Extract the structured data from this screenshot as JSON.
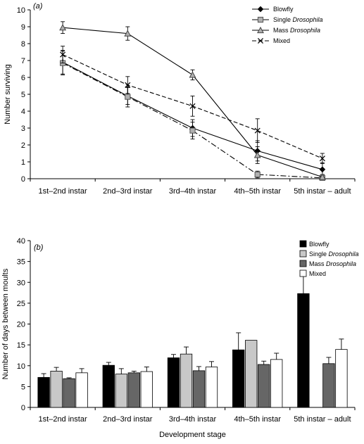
{
  "chart_data": [
    {
      "type": "line",
      "panel_label": "(a)",
      "ylabel": "Number surviving",
      "xlabel": "",
      "categories": [
        "1st–2nd instar",
        "2nd–3rd instar",
        "3rd–4th instar",
        "4th–5th instar",
        "5th instar – adult"
      ],
      "ylim": [
        0,
        10
      ],
      "yticks": [
        0,
        1,
        2,
        3,
        4,
        5,
        6,
        7,
        8,
        9,
        10
      ],
      "grid": false,
      "legend_position": "top-right",
      "series": [
        {
          "name": "Blowfly",
          "name_parts": [
            "Blowfly",
            ""
          ],
          "marker": "diamond",
          "dash": "solid",
          "values": [
            6.9,
            4.9,
            3.0,
            1.65,
            0.55
          ],
          "errors": [
            0.7,
            0.5,
            0.5,
            0.6,
            0.4
          ]
        },
        {
          "name": "Single Drosophila",
          "name_parts": [
            "Single ",
            "Drosophila"
          ],
          "marker": "square",
          "dash": "dashdot",
          "values": [
            6.85,
            4.85,
            2.85,
            0.25,
            0.05
          ],
          "errors": [
            0.7,
            0.6,
            0.5,
            0.2,
            0.05
          ]
        },
        {
          "name": "Mass Drosophila",
          "name_parts": [
            "Mass ",
            "Drosophila"
          ],
          "marker": "triangle",
          "dash": "solid",
          "values": [
            8.95,
            8.6,
            6.15,
            1.4,
            0.1
          ],
          "errors": [
            0.35,
            0.4,
            0.3,
            0.5,
            0.15
          ]
        },
        {
          "name": "Mixed",
          "name_parts": [
            "Mixed",
            ""
          ],
          "marker": "x",
          "dash": "dashed",
          "values": [
            7.35,
            5.55,
            4.3,
            2.85,
            1.2
          ],
          "errors": [
            0.5,
            0.5,
            0.6,
            0.7,
            0.3
          ]
        }
      ]
    },
    {
      "type": "bar",
      "panel_label": "(b)",
      "ylabel": "Number of days between moults",
      "xlabel": "Development stage",
      "categories": [
        "1st–2nd instar",
        "2nd–3rd instar",
        "3rd–4th instar",
        "4th–5th instar",
        "5th instar – adult"
      ],
      "ylim": [
        0,
        40
      ],
      "yticks": [
        0,
        5,
        10,
        15,
        20,
        25,
        30,
        35,
        40
      ],
      "grid": false,
      "legend_position": "top-right",
      "series": [
        {
          "name": "Blowfly",
          "name_parts": [
            "Blowfly",
            ""
          ],
          "color": "#000000",
          "values": [
            7.2,
            10.1,
            11.9,
            13.8,
            27.3
          ],
          "errors": [
            0.9,
            0.7,
            0.8,
            4.1,
            4.8
          ]
        },
        {
          "name": "Single Drosophila",
          "name_parts": [
            "Single ",
            "Drosophila"
          ],
          "color": "#c8c8c8",
          "values": [
            8.7,
            8.0,
            12.8,
            16.1,
            null
          ],
          "errors": [
            0.9,
            1.3,
            1.7,
            0,
            null
          ]
        },
        {
          "name": "Mass Drosophila",
          "name_parts": [
            "Mass ",
            "Drosophila"
          ],
          "color": "#666666",
          "values": [
            6.9,
            8.3,
            8.8,
            10.3,
            10.5
          ],
          "errors": [
            0.2,
            0.4,
            1.0,
            0.8,
            1.5
          ]
        },
        {
          "name": "Mixed",
          "name_parts": [
            "Mixed",
            ""
          ],
          "color": "#ffffff",
          "values": [
            8.3,
            8.6,
            9.7,
            11.5,
            13.9
          ],
          "errors": [
            1.0,
            1.1,
            1.3,
            1.5,
            2.5
          ]
        }
      ]
    }
  ]
}
